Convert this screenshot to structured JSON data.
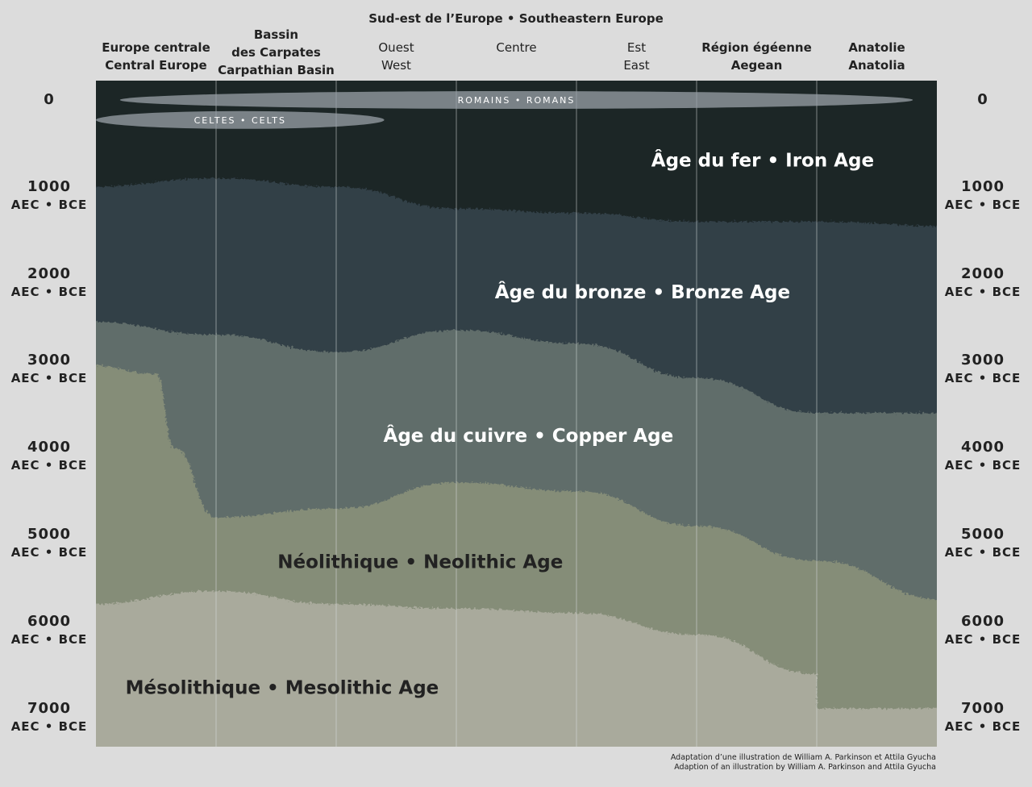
{
  "header": {
    "super_title": "Sud-est de l’Europe • Southeastern Europe",
    "columns": [
      {
        "lines": [
          "Europe centrale",
          "Central Europe"
        ]
      },
      {
        "lines": [
          "Bassin",
          "des Carpates",
          "Carpathian Basin"
        ]
      },
      {
        "lines": [
          "Ouest",
          "West"
        ]
      },
      {
        "lines": [
          "Centre"
        ]
      },
      {
        "lines": [
          "Est",
          "East"
        ]
      },
      {
        "lines": [
          "Région égéenne",
          "Aegean"
        ]
      },
      {
        "lines": [
          "Anatolie",
          "Anatolia"
        ]
      }
    ]
  },
  "axis": {
    "ticks": [
      {
        "value": 0,
        "label": "0",
        "unit": ""
      },
      {
        "value": 1000,
        "label": "1000",
        "unit": "AEC • BCE"
      },
      {
        "value": 2000,
        "label": "2000",
        "unit": "AEC • BCE"
      },
      {
        "value": 3000,
        "label": "3000",
        "unit": "AEC • BCE"
      },
      {
        "value": 4000,
        "label": "4000",
        "unit": "AEC • BCE"
      },
      {
        "value": 5000,
        "label": "5000",
        "unit": "AEC • BCE"
      },
      {
        "value": 6000,
        "label": "6000",
        "unit": "AEC • BCE"
      },
      {
        "value": 7000,
        "label": "7000",
        "unit": "AEC • BCE"
      }
    ]
  },
  "periods": [
    {
      "name": "Âge du fer • Iron Age",
      "color": "#1c2528",
      "text_color": "#ffffff",
      "label_center": {
        "col": 5.55,
        "year": 680
      },
      "lower_boundary": [
        [
          0,
          1000
        ],
        [
          1,
          900
        ],
        [
          2,
          1000
        ],
        [
          3,
          1250
        ],
        [
          4,
          1300
        ],
        [
          5,
          1400
        ],
        [
          6,
          1400
        ],
        [
          7,
          1450
        ]
      ]
    },
    {
      "name": "Âge du bronze • Bronze Age",
      "color": "#333f46",
      "text_color": "#ffffff",
      "label_center": {
        "col": 4.55,
        "year": 2200
      },
      "lower_boundary": [
        [
          0,
          2550
        ],
        [
          1,
          2700
        ],
        [
          2,
          2900
        ],
        [
          3,
          2650
        ],
        [
          4,
          2800
        ],
        [
          5,
          3200
        ],
        [
          6,
          3600
        ],
        [
          7,
          3600
        ]
      ]
    },
    {
      "name": "Âge du cuivre • Copper Age",
      "color": "#606d6a",
      "text_color": "#ffffff",
      "label_center": {
        "col": 3.6,
        "year": 3850
      },
      "lower_boundary": [
        [
          0,
          3050
        ],
        [
          0.5,
          3150
        ],
        [
          0.65,
          4000
        ],
        [
          1,
          4800
        ],
        [
          2,
          4700
        ],
        [
          3,
          4400
        ],
        [
          4,
          4500
        ],
        [
          5,
          4900
        ],
        [
          6,
          5300
        ],
        [
          7,
          5750
        ]
      ]
    },
    {
      "name": "Néolithique • Neolithic Age",
      "color": "#858d78",
      "text_color": "#222222",
      "label_center": {
        "col": 2.7,
        "year": 5300
      },
      "lower_boundary": [
        [
          0,
          5800
        ],
        [
          1,
          5650
        ],
        [
          2,
          5800
        ],
        [
          3,
          5850
        ],
        [
          4,
          5900
        ],
        [
          5,
          6150
        ],
        [
          6,
          6600
        ],
        [
          6,
          7000
        ],
        [
          7,
          7000
        ]
      ]
    },
    {
      "name": "Mésolithique • Mesolithic Age",
      "color": "#a9aa9c",
      "text_color": "#222222",
      "label_center": {
        "col": 1.55,
        "year": 6750
      },
      "lower_boundary": []
    }
  ],
  "overlays": [
    {
      "name": "ROMAINS • ROMANS",
      "from_col": 0.2,
      "to_col": 6.8,
      "year": 0,
      "color": "#9aa2a8"
    },
    {
      "name": "CELTES • CELTS",
      "from_col": 0.0,
      "to_col": 2.4,
      "year": 230,
      "color": "#9aa2a8"
    }
  ],
  "credit": [
    "Adaptation d’une illustration de William A. Parkinson et Attila Gyucha",
    "Adaption of an illustration by William A. Parkinson and Attila Gyucha"
  ]
}
